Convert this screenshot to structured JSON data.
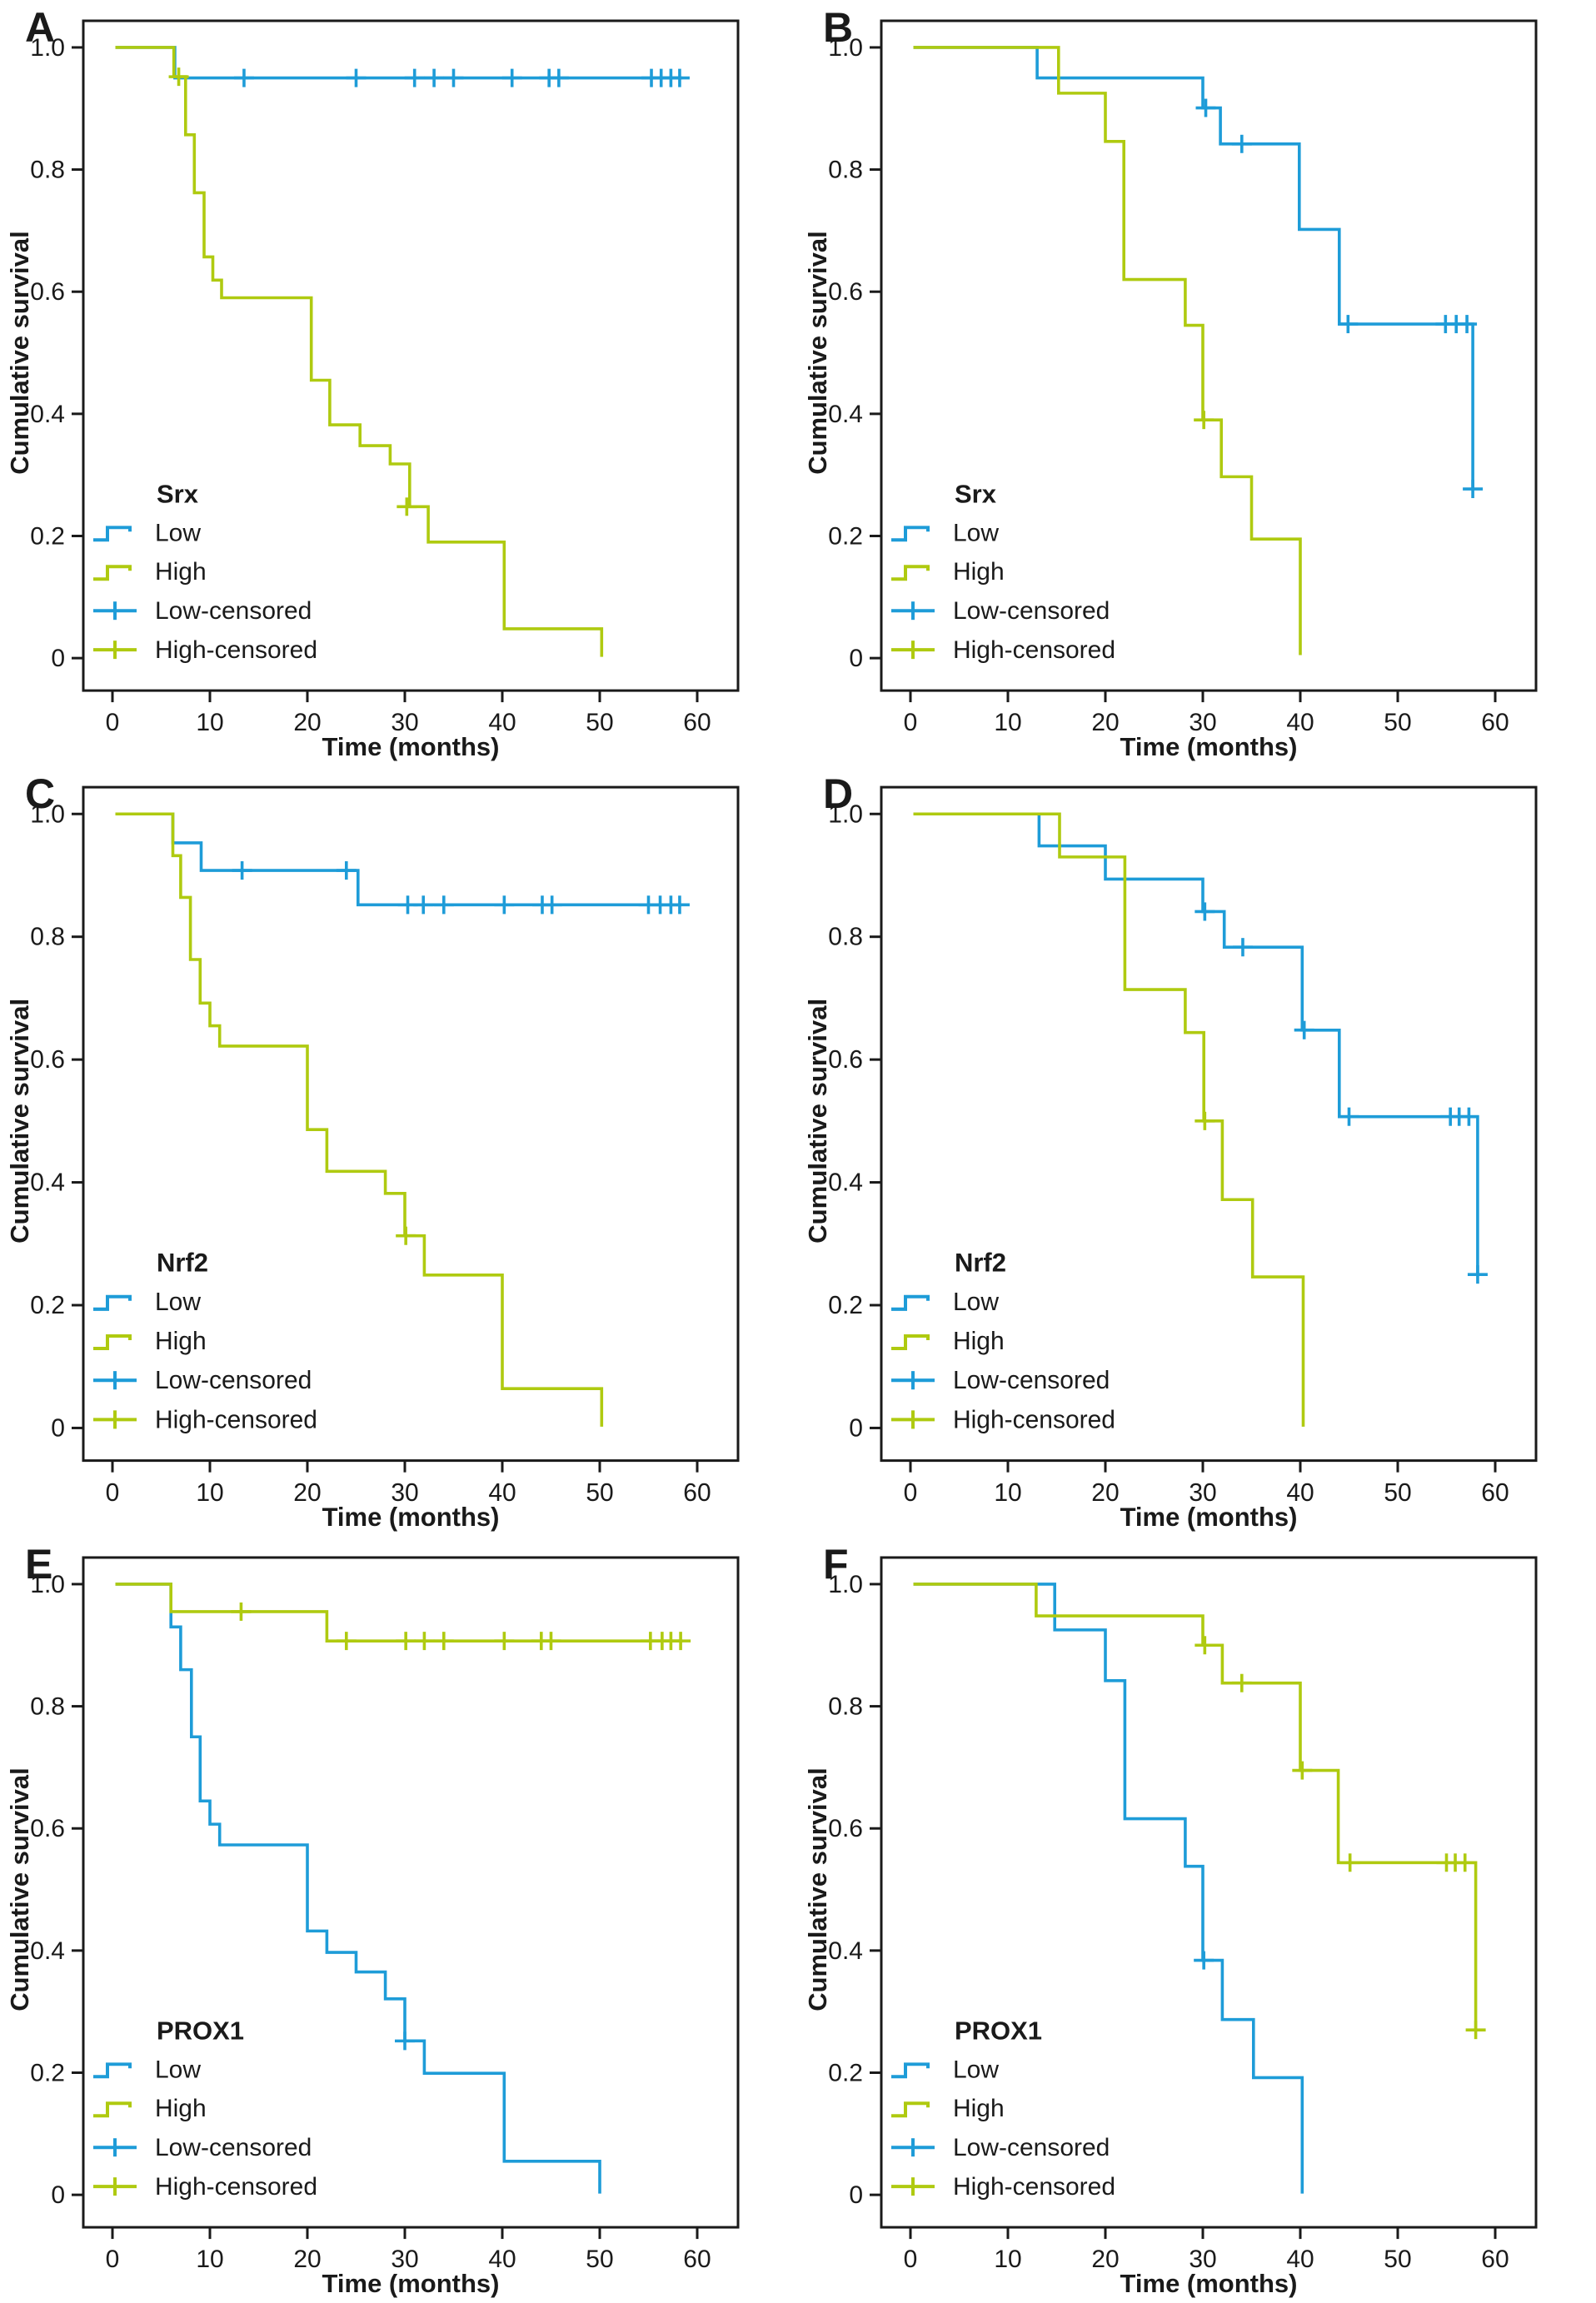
{
  "figure": {
    "background": "#ffffff",
    "colors": {
      "low": "#1E9CD8",
      "high": "#AFCA10",
      "axis": "#1A1A1A",
      "text": "#1A1A1A"
    },
    "axes": {
      "x_label": "Time (months)",
      "y_label": "Cumulative survival",
      "x_tick_labels": [
        "0",
        "10",
        "20",
        "30",
        "40",
        "50",
        "60"
      ],
      "x_tick_values": [
        0,
        10,
        20,
        30,
        40,
        50,
        60
      ],
      "y_tick_labels": [
        "0",
        "0.2",
        "0.4",
        "0.6",
        "0.8",
        "1.0"
      ],
      "y_tick_values": [
        0,
        0.2,
        0.4,
        0.6,
        0.8,
        1.0
      ],
      "x_range": [
        0,
        63
      ],
      "y_range": [
        0,
        1.05
      ],
      "grid": false
    },
    "legend": {
      "position": "lower-left",
      "entries": [
        {
          "key": "low",
          "label": "Low",
          "symbol": "step"
        },
        {
          "key": "high",
          "label": "High",
          "symbol": "step"
        },
        {
          "key": "low",
          "label": "Low-censored",
          "symbol": "plus"
        },
        {
          "key": "high",
          "label": "High-censored",
          "symbol": "plus"
        }
      ]
    }
  },
  "chart_data": [
    {
      "type": "km_step",
      "panel_label": "A",
      "legend_title": "Srx",
      "series": [
        {
          "key": "low",
          "name": "Low",
          "steps": [
            [
              0,
              1.0
            ],
            [
              6.4,
              0.95
            ]
          ],
          "end": 58.5,
          "censors": [
            [
              13.5,
              0.95
            ],
            [
              25,
              0.95
            ],
            [
              31,
              0.95
            ],
            [
              33,
              0.95
            ],
            [
              35,
              0.95
            ],
            [
              41,
              0.95
            ],
            [
              44.8,
              0.95
            ],
            [
              45.8,
              0.95
            ],
            [
              55.3,
              0.95
            ],
            [
              56.3,
              0.95
            ],
            [
              57.3,
              0.95
            ],
            [
              58.2,
              0.95
            ]
          ]
        },
        {
          "key": "high",
          "name": "High",
          "steps": [
            [
              0,
              1.0
            ],
            [
              6.3,
              0.952
            ],
            [
              7.5,
              0.857
            ],
            [
              8.4,
              0.762
            ],
            [
              9.4,
              0.657
            ],
            [
              10.3,
              0.619
            ],
            [
              11.2,
              0.59
            ],
            [
              20.4,
              0.455
            ],
            [
              22.3,
              0.382
            ],
            [
              25.4,
              0.348
            ],
            [
              28.5,
              0.318
            ],
            [
              30.5,
              0.248
            ],
            [
              32.4,
              0.19
            ],
            [
              40.2,
              0.048
            ],
            [
              50.2,
              0.002
            ]
          ],
          "end": 50.2,
          "censors": [
            [
              6.8,
              0.952
            ],
            [
              30.2,
              0.248
            ]
          ]
        }
      ]
    },
    {
      "type": "km_step",
      "panel_label": "B",
      "legend_title": "Srx",
      "series": [
        {
          "key": "low",
          "name": "Low",
          "steps": [
            [
              0,
              1.0
            ],
            [
              13,
              0.95
            ],
            [
              30,
              0.901
            ],
            [
              31.8,
              0.842
            ],
            [
              39.9,
              0.702
            ],
            [
              44,
              0.547
            ],
            [
              57.7,
              0.277
            ]
          ],
          "end": 57.7,
          "censors": [
            [
              30.3,
              0.901
            ],
            [
              34,
              0.842
            ],
            [
              44.9,
              0.547
            ],
            [
              54.9,
              0.547
            ],
            [
              56,
              0.547
            ],
            [
              57.1,
              0.547
            ],
            [
              57.7,
              0.277
            ]
          ]
        },
        {
          "key": "high",
          "name": "High",
          "steps": [
            [
              0,
              1.0
            ],
            [
              15.2,
              0.925
            ],
            [
              20,
              0.846
            ],
            [
              21.9,
              0.62
            ],
            [
              28.2,
              0.545
            ],
            [
              30,
              0.39
            ],
            [
              31.9,
              0.297
            ],
            [
              35,
              0.195
            ],
            [
              40,
              0.005
            ]
          ],
          "end": 40,
          "censors": [
            [
              30.1,
              0.39
            ]
          ]
        }
      ]
    },
    {
      "type": "km_step",
      "panel_label": "C",
      "legend_title": "Nrf2",
      "series": [
        {
          "key": "low",
          "name": "Low",
          "steps": [
            [
              0,
              1.0
            ],
            [
              6.2,
              0.953
            ],
            [
              9.1,
              0.908
            ],
            [
              25.2,
              0.852
            ]
          ],
          "end": 58.4,
          "censors": [
            [
              13.3,
              0.908
            ],
            [
              24,
              0.908
            ],
            [
              30.3,
              0.852
            ],
            [
              31.9,
              0.852
            ],
            [
              34,
              0.852
            ],
            [
              40.2,
              0.852
            ],
            [
              44.1,
              0.852
            ],
            [
              45.1,
              0.852
            ],
            [
              55,
              0.852
            ],
            [
              56.2,
              0.852
            ],
            [
              57.3,
              0.852
            ],
            [
              58.2,
              0.852
            ]
          ]
        },
        {
          "key": "high",
          "name": "High",
          "steps": [
            [
              0,
              1.0
            ],
            [
              6.2,
              0.932
            ],
            [
              7,
              0.864
            ],
            [
              8,
              0.763
            ],
            [
              9,
              0.692
            ],
            [
              10,
              0.655
            ],
            [
              11,
              0.622
            ],
            [
              20,
              0.486
            ],
            [
              22,
              0.418
            ],
            [
              28,
              0.382
            ],
            [
              30,
              0.313
            ],
            [
              32,
              0.249
            ],
            [
              40,
              0.064
            ],
            [
              50.2,
              0.002
            ]
          ],
          "end": 50.2,
          "censors": [
            [
              30.1,
              0.313
            ]
          ]
        }
      ]
    },
    {
      "type": "km_step",
      "panel_label": "D",
      "legend_title": "Nrf2",
      "series": [
        {
          "key": "low",
          "name": "Low",
          "steps": [
            [
              0,
              1.0
            ],
            [
              13.2,
              0.948
            ],
            [
              20,
              0.894
            ],
            [
              30,
              0.841
            ],
            [
              32.2,
              0.783
            ],
            [
              40.2,
              0.648
            ],
            [
              44,
              0.507
            ],
            [
              58.2,
              0.25
            ]
          ],
          "end": 58.2,
          "censors": [
            [
              30.2,
              0.841
            ],
            [
              34.1,
              0.783
            ],
            [
              40.4,
              0.648
            ],
            [
              45,
              0.507
            ],
            [
              55.4,
              0.507
            ],
            [
              56.3,
              0.507
            ],
            [
              57.3,
              0.507
            ],
            [
              58.2,
              0.25
            ]
          ]
        },
        {
          "key": "high",
          "name": "High",
          "steps": [
            [
              0,
              1.0
            ],
            [
              15.3,
              0.93
            ],
            [
              22,
              0.714
            ],
            [
              28.2,
              0.644
            ],
            [
              30.1,
              0.5
            ],
            [
              32,
              0.372
            ],
            [
              35.1,
              0.246
            ],
            [
              40.3,
              0.002
            ]
          ],
          "end": 40.3,
          "censors": [
            [
              30.2,
              0.5
            ]
          ]
        }
      ]
    },
    {
      "type": "km_step",
      "panel_label": "E",
      "legend_title": "PROX1",
      "series": [
        {
          "key": "low",
          "name": "Low",
          "steps": [
            [
              0,
              1.0
            ],
            [
              6,
              0.93
            ],
            [
              7,
              0.86
            ],
            [
              8.1,
              0.75
            ],
            [
              9,
              0.645
            ],
            [
              10,
              0.607
            ],
            [
              11,
              0.573
            ],
            [
              20,
              0.432
            ],
            [
              22,
              0.397
            ],
            [
              25,
              0.365
            ],
            [
              28,
              0.321
            ],
            [
              30,
              0.252
            ],
            [
              32,
              0.199
            ],
            [
              40.2,
              0.055
            ],
            [
              50,
              0.002
            ]
          ],
          "end": 50,
          "censors": [
            [
              30,
              0.252
            ]
          ]
        },
        {
          "key": "high",
          "name": "High",
          "steps": [
            [
              0,
              1.0
            ],
            [
              6,
              0.955
            ],
            [
              22,
              0.907
            ]
          ],
          "end": 58.5,
          "censors": [
            [
              13.2,
              0.955
            ],
            [
              24,
              0.907
            ],
            [
              30.1,
              0.907
            ],
            [
              32,
              0.907
            ],
            [
              34,
              0.907
            ],
            [
              40.2,
              0.907
            ],
            [
              44,
              0.907
            ],
            [
              45,
              0.907
            ],
            [
              55.2,
              0.907
            ],
            [
              56.4,
              0.907
            ],
            [
              57.3,
              0.907
            ],
            [
              58.3,
              0.907
            ]
          ]
        }
      ]
    },
    {
      "type": "km_step",
      "panel_label": "F",
      "legend_title": "PROX1",
      "series": [
        {
          "key": "low",
          "name": "Low",
          "steps": [
            [
              0,
              1.0
            ],
            [
              14.8,
              0.925
            ],
            [
              20,
              0.842
            ],
            [
              22,
              0.616
            ],
            [
              28.2,
              0.538
            ],
            [
              30,
              0.384
            ],
            [
              32,
              0.287
            ],
            [
              35.2,
              0.192
            ],
            [
              40.2,
              0.002
            ]
          ],
          "end": 40.2,
          "censors": [
            [
              30.1,
              0.384
            ]
          ]
        },
        {
          "key": "high",
          "name": "High",
          "steps": [
            [
              0,
              1.0
            ],
            [
              12.9,
              0.948
            ],
            [
              30,
              0.9
            ],
            [
              32,
              0.838
            ],
            [
              40,
              0.695
            ],
            [
              43.9,
              0.544
            ],
            [
              58,
              0.27
            ]
          ],
          "end": 58,
          "censors": [
            [
              30.2,
              0.9
            ],
            [
              34,
              0.838
            ],
            [
              40.2,
              0.695
            ],
            [
              45.1,
              0.544
            ],
            [
              55,
              0.544
            ],
            [
              55.9,
              0.544
            ],
            [
              56.9,
              0.544
            ],
            [
              58,
              0.27
            ]
          ]
        }
      ]
    }
  ]
}
